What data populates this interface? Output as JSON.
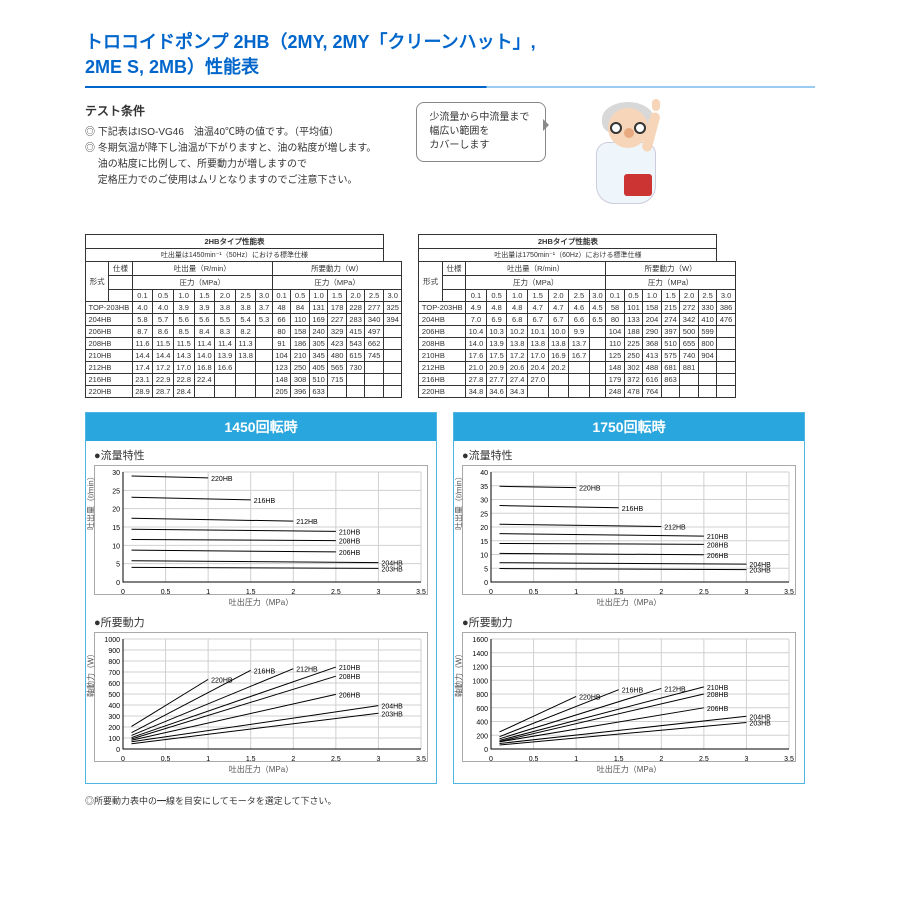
{
  "title_line1": "トロコイドポンプ 2HB（2MY, 2MY「クリーンハット」,",
  "title_line2": "2ME S, 2MB）性能表",
  "test_head": "テスト条件",
  "cond1": "◎ 下記表はISO-VG46　油温40℃時の値です。（平均値）",
  "cond2a": "◎ 冬期気温が降下し油温が下がりますと、油の粘度が増します。",
  "cond2b": "　 油の粘度に比例して、所要動力が増しますので",
  "cond2c": "　 定格圧力でのご使用はムリとなりますのでご注意下さい。",
  "speech1": "少流量から中流量まで",
  "speech2": "幅広い範囲を",
  "speech3": "カバーします",
  "tables": {
    "common": {
      "title": "2HBタイプ性能表",
      "col_group_disch": "吐出量（R/min）",
      "col_group_power": "所要動力（W）",
      "col_pressure": "圧力（MPa）",
      "col_spec": "仕様",
      "col_model": "形式",
      "pressure_heads": [
        "0.1",
        "0.5",
        "1.0",
        "1.5",
        "2.0",
        "2.5",
        "3.0",
        "0.1",
        "0.5",
        "1.0",
        "1.5",
        "2.0",
        "2.5",
        "3.0"
      ]
    },
    "t50": {
      "subtitle": "吐出量は1450min⁻¹（50Hz）における標準仕様",
      "rows": [
        [
          "TOP-203HB",
          "4.0",
          "4.0",
          "3.9",
          "3.9",
          "3.8",
          "3.8",
          "3.7",
          "48",
          "84",
          "131",
          "178",
          "228",
          "277",
          "325"
        ],
        [
          "204HB",
          "5.8",
          "5.7",
          "5.6",
          "5.6",
          "5.5",
          "5.4",
          "5.3",
          "66",
          "110",
          "169",
          "227",
          "283",
          "340",
          "394"
        ],
        [
          "206HB",
          "8.7",
          "8.6",
          "8.5",
          "8.4",
          "8.3",
          "8.2",
          "",
          "80",
          "158",
          "240",
          "329",
          "415",
          "497",
          ""
        ],
        [
          "208HB",
          "11.6",
          "11.5",
          "11.5",
          "11.4",
          "11.4",
          "11.3",
          "",
          "91",
          "186",
          "305",
          "423",
          "543",
          "662",
          ""
        ],
        [
          "210HB",
          "14.4",
          "14.4",
          "14.3",
          "14.0",
          "13.9",
          "13.8",
          "",
          "104",
          "210",
          "345",
          "480",
          "615",
          "745",
          ""
        ],
        [
          "212HB",
          "17.4",
          "17.2",
          "17.0",
          "16.8",
          "16.6",
          "",
          "",
          "123",
          "250",
          "405",
          "565",
          "730",
          "",
          ""
        ],
        [
          "216HB",
          "23.1",
          "22.9",
          "22.8",
          "22.4",
          "",
          "",
          "",
          "148",
          "308",
          "510",
          "715",
          "",
          "",
          ""
        ],
        [
          "220HB",
          "28.9",
          "28.7",
          "28.4",
          "",
          "",
          "",
          "",
          "205",
          "396",
          "633",
          "",
          "",
          "",
          ""
        ]
      ]
    },
    "t60": {
      "subtitle": "吐出量は1750min⁻¹（60Hz）における標準仕様",
      "rows": [
        [
          "TOP-203HB",
          "4.9",
          "4.8",
          "4.8",
          "4.7",
          "4.7",
          "4.6",
          "4.5",
          "58",
          "101",
          "158",
          "215",
          "272",
          "330",
          "386"
        ],
        [
          "204HB",
          "7.0",
          "6.9",
          "6.8",
          "6.7",
          "6.7",
          "6.6",
          "6.5",
          "80",
          "133",
          "204",
          "274",
          "342",
          "410",
          "476"
        ],
        [
          "206HB",
          "10.4",
          "10.3",
          "10.2",
          "10.1",
          "10.0",
          "9.9",
          "",
          "104",
          "188",
          "290",
          "397",
          "500",
          "599",
          ""
        ],
        [
          "208HB",
          "14.0",
          "13.9",
          "13.8",
          "13.8",
          "13.8",
          "13.7",
          "",
          "110",
          "225",
          "368",
          "510",
          "655",
          "800",
          ""
        ],
        [
          "210HB",
          "17.6",
          "17.5",
          "17.2",
          "17.0",
          "16.9",
          "16.7",
          "",
          "125",
          "250",
          "413",
          "575",
          "740",
          "904",
          ""
        ],
        [
          "212HB",
          "21.0",
          "20.9",
          "20.6",
          "20.4",
          "20.2",
          "",
          "",
          "148",
          "302",
          "488",
          "681",
          "881",
          "",
          ""
        ],
        [
          "216HB",
          "27.8",
          "27.7",
          "27.4",
          "27.0",
          "",
          "",
          "",
          "179",
          "372",
          "616",
          "863",
          "",
          "",
          ""
        ],
        [
          "220HB",
          "34.8",
          "34.6",
          "34.3",
          "",
          "",
          "",
          "",
          "248",
          "478",
          "764",
          "",
          "",
          "",
          ""
        ]
      ]
    }
  },
  "charts": {
    "xlabel": "吐出圧力（MPa）",
    "xmax": 3.5,
    "xticks": [
      0,
      0.5,
      1,
      1.5,
      2,
      2.5,
      3,
      3.5
    ],
    "plot_color": "#000000",
    "grid_color": "#d0d0d0",
    "bg_color": "#ffffff",
    "label_fontsize": 8,
    "heads": {
      "c50": "1450回転時",
      "c60": "1750回転時"
    },
    "flow_title": "●流量特性",
    "flow_ylabel": "吐出量（ℓ/min）",
    "power_title": "●所要動力",
    "power_ylabel": "軸動力（W）",
    "flow50": {
      "ymax": 30,
      "ytick_step": 5,
      "series": [
        {
          "name": "203HB",
          "pts": [
            [
              0.1,
              4.0
            ],
            [
              3.0,
              3.7
            ]
          ]
        },
        {
          "name": "204HB",
          "pts": [
            [
              0.1,
              5.8
            ],
            [
              3.0,
              5.3
            ]
          ]
        },
        {
          "name": "206HB",
          "pts": [
            [
              0.1,
              8.7
            ],
            [
              2.5,
              8.2
            ]
          ]
        },
        {
          "name": "208HB",
          "pts": [
            [
              0.1,
              11.6
            ],
            [
              2.5,
              11.3
            ]
          ]
        },
        {
          "name": "210HB",
          "pts": [
            [
              0.1,
              14.4
            ],
            [
              2.5,
              13.8
            ]
          ]
        },
        {
          "name": "212HB",
          "pts": [
            [
              0.1,
              17.4
            ],
            [
              2.0,
              16.6
            ]
          ]
        },
        {
          "name": "216HB",
          "pts": [
            [
              0.1,
              23.1
            ],
            [
              1.5,
              22.4
            ]
          ]
        },
        {
          "name": "220HB",
          "pts": [
            [
              0.1,
              28.9
            ],
            [
              1.0,
              28.4
            ]
          ]
        }
      ]
    },
    "flow60": {
      "ymax": 40,
      "ytick_step": 5,
      "series": [
        {
          "name": "203HB",
          "pts": [
            [
              0.1,
              4.9
            ],
            [
              3.0,
              4.5
            ]
          ]
        },
        {
          "name": "204HB",
          "pts": [
            [
              0.1,
              7.0
            ],
            [
              3.0,
              6.5
            ]
          ]
        },
        {
          "name": "206HB",
          "pts": [
            [
              0.1,
              10.4
            ],
            [
              2.5,
              9.9
            ]
          ]
        },
        {
          "name": "208HB",
          "pts": [
            [
              0.1,
              14.0
            ],
            [
              2.5,
              13.7
            ]
          ]
        },
        {
          "name": "210HB",
          "pts": [
            [
              0.1,
              17.6
            ],
            [
              2.5,
              16.7
            ]
          ]
        },
        {
          "name": "212HB",
          "pts": [
            [
              0.1,
              21.0
            ],
            [
              2.0,
              20.2
            ]
          ]
        },
        {
          "name": "216HB",
          "pts": [
            [
              0.1,
              27.8
            ],
            [
              1.5,
              27.0
            ]
          ]
        },
        {
          "name": "220HB",
          "pts": [
            [
              0.1,
              34.8
            ],
            [
              1.0,
              34.3
            ]
          ]
        }
      ]
    },
    "pow50": {
      "ymax": 1000,
      "ytick_step": 100,
      "series": [
        {
          "name": "203HB",
          "pts": [
            [
              0.1,
              48
            ],
            [
              3.0,
              325
            ]
          ]
        },
        {
          "name": "204HB",
          "pts": [
            [
              0.1,
              66
            ],
            [
              3.0,
              394
            ]
          ]
        },
        {
          "name": "206HB",
          "pts": [
            [
              0.1,
              80
            ],
            [
              2.5,
              497
            ]
          ]
        },
        {
          "name": "208HB",
          "pts": [
            [
              0.1,
              91
            ],
            [
              2.5,
              662
            ]
          ]
        },
        {
          "name": "210HB",
          "pts": [
            [
              0.1,
              104
            ],
            [
              2.5,
              745
            ]
          ]
        },
        {
          "name": "212HB",
          "pts": [
            [
              0.1,
              123
            ],
            [
              2.0,
              730
            ]
          ]
        },
        {
          "name": "216HB",
          "pts": [
            [
              0.1,
              148
            ],
            [
              1.5,
              715
            ]
          ]
        },
        {
          "name": "220HB",
          "pts": [
            [
              0.1,
              205
            ],
            [
              1.0,
              633
            ]
          ]
        }
      ]
    },
    "pow60": {
      "ymax": 1600,
      "ytick_step": 200,
      "series": [
        {
          "name": "203HB",
          "pts": [
            [
              0.1,
              58
            ],
            [
              3.0,
              386
            ]
          ]
        },
        {
          "name": "204HB",
          "pts": [
            [
              0.1,
              80
            ],
            [
              3.0,
              476
            ]
          ]
        },
        {
          "name": "206HB",
          "pts": [
            [
              0.1,
              104
            ],
            [
              2.5,
              599
            ]
          ]
        },
        {
          "name": "208HB",
          "pts": [
            [
              0.1,
              110
            ],
            [
              2.5,
              800
            ]
          ]
        },
        {
          "name": "210HB",
          "pts": [
            [
              0.1,
              125
            ],
            [
              2.5,
              904
            ]
          ]
        },
        {
          "name": "212HB",
          "pts": [
            [
              0.1,
              148
            ],
            [
              2.0,
              881
            ]
          ]
        },
        {
          "name": "216HB",
          "pts": [
            [
              0.1,
              179
            ],
            [
              1.5,
              863
            ]
          ]
        },
        {
          "name": "220HB",
          "pts": [
            [
              0.1,
              248
            ],
            [
              1.0,
              764
            ]
          ]
        }
      ]
    }
  },
  "foot_note": "◎所要動力表中の━線を目安にしてモータを選定して下さい。"
}
